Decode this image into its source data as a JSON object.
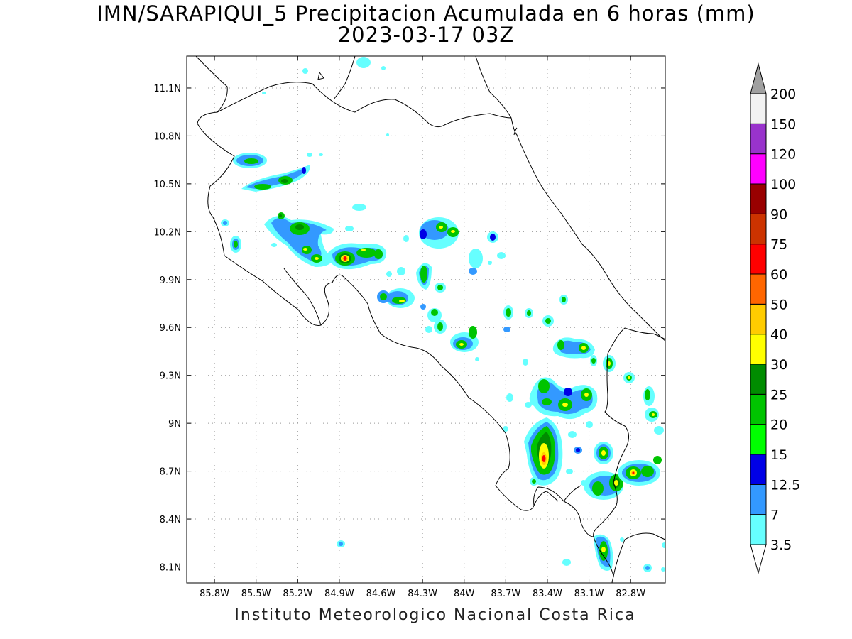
{
  "title": "IMN/SARAPIQUI_5 Precipitacion Acumulada en 6 horas (mm)",
  "subtitle": "2023-03-17 03Z",
  "credit": "Instituto Meteorologico Nacional Costa Rica",
  "map": {
    "lon_ticks": [
      "85.8W",
      "85.5W",
      "85.2W",
      "84.9W",
      "84.6W",
      "84.3W",
      "84W",
      "83.7W",
      "83.4W",
      "83.1W",
      "82.8W"
    ],
    "lat_ticks": [
      "11.1N",
      "10.8N",
      "10.5N",
      "10.2N",
      "9.9N",
      "9.6N",
      "9.3N",
      "9N",
      "8.7N",
      "8.4N",
      "8.1N"
    ],
    "lon_range": [
      -86.0,
      -82.55
    ],
    "lat_range": [
      8.0,
      11.3
    ],
    "grid": "dotted"
  },
  "colorbar": {
    "labels": [
      "3.5",
      "7",
      "12.5",
      "15",
      "20",
      "25",
      "30",
      "40",
      "50",
      "60",
      "75",
      "90",
      "100",
      "120",
      "150",
      "200"
    ],
    "colors": [
      "#ffffff",
      "#66ffff",
      "#3399ff",
      "#0000e6",
      "#00ff00",
      "#00c400",
      "#008c00",
      "#ffff00",
      "#ffcc00",
      "#ff6600",
      "#ff0000",
      "#cc3300",
      "#990000",
      "#ff00ff",
      "#9933cc",
      "#f2f2f2"
    ],
    "over_color": "#a0a0a0",
    "under_color": "#ffffff"
  }
}
